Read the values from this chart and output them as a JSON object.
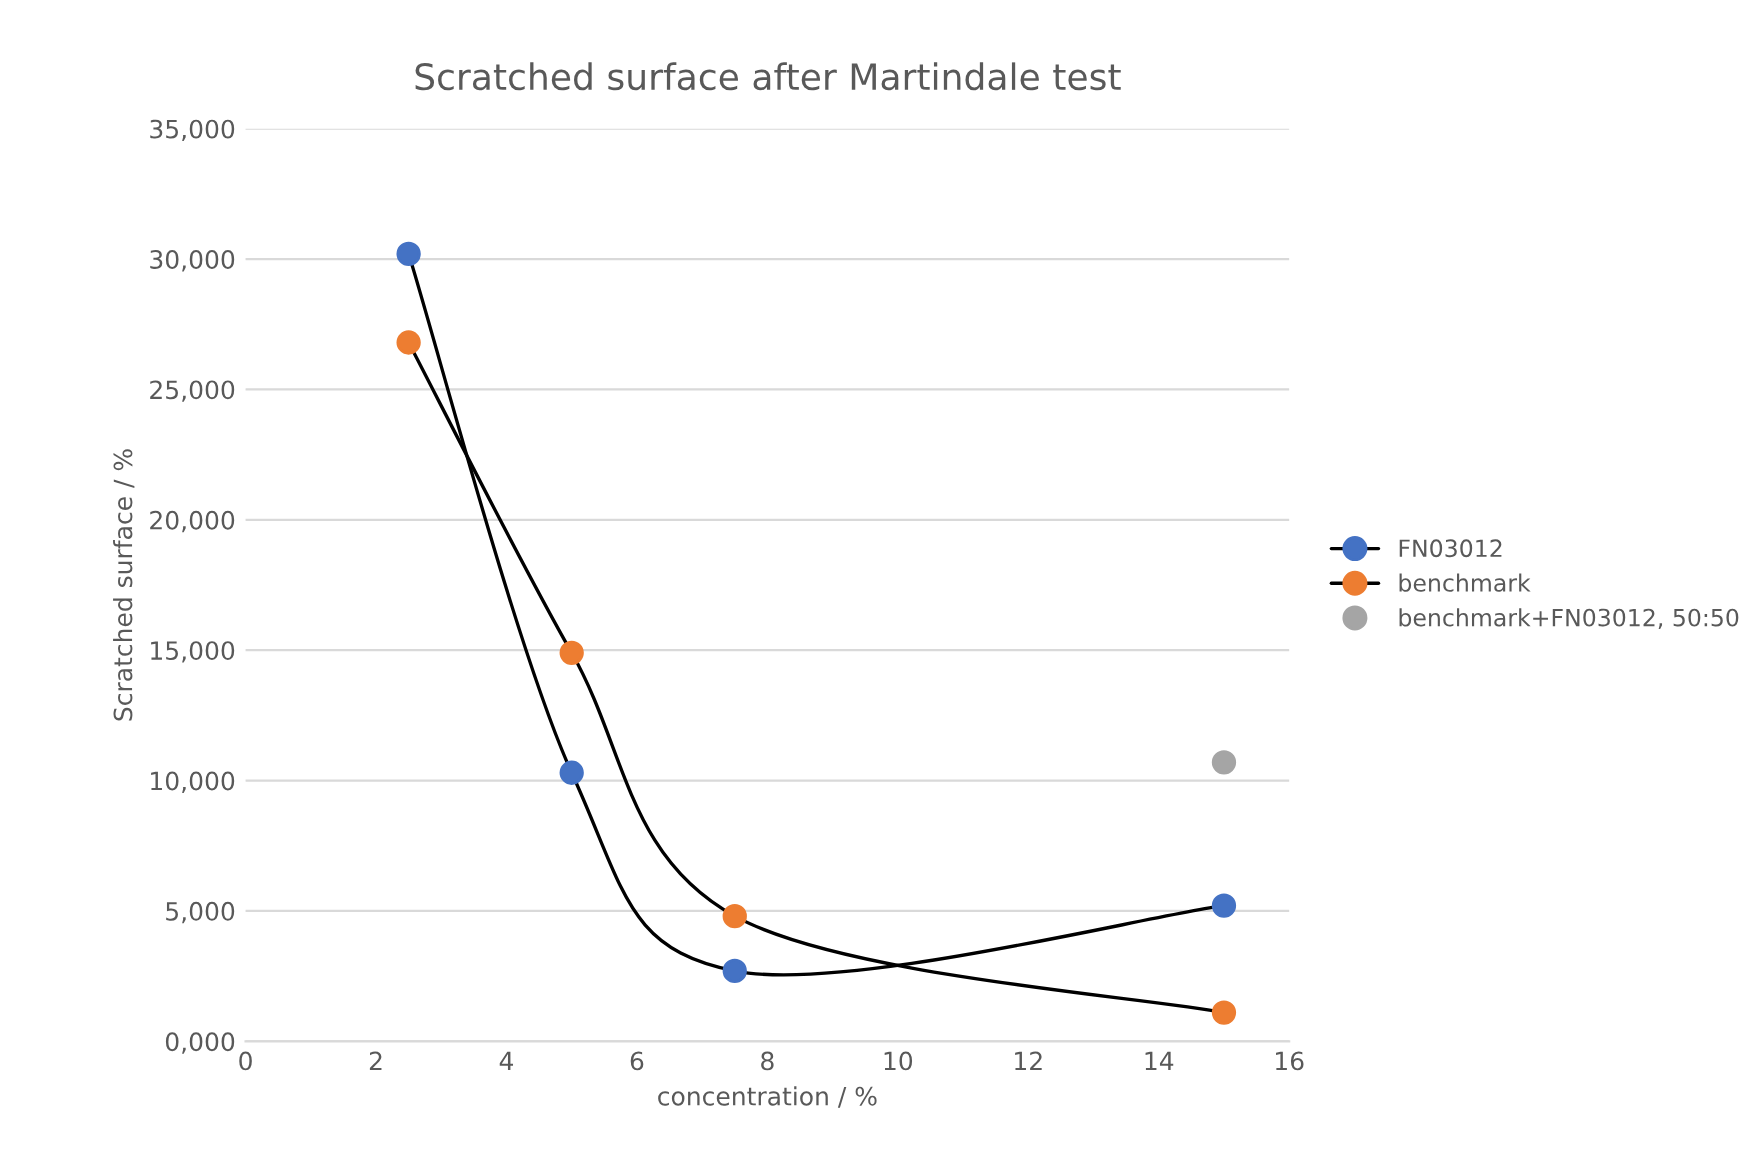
{
  "chart_data": {
    "type": "line",
    "title": "Scratched surface after Martindale test",
    "xlabel": "concentration / %",
    "ylabel": "Scratched surface / %",
    "xlim": [
      0,
      16
    ],
    "xticks": [
      0,
      2,
      4,
      6,
      8,
      10,
      12,
      14,
      16
    ],
    "ylim": [
      0,
      35000
    ],
    "yticks": [
      {
        "value": 0,
        "label": "0,000"
      },
      {
        "value": 5000,
        "label": "5,000"
      },
      {
        "value": 10000,
        "label": "10,000"
      },
      {
        "value": 15000,
        "label": "15,000"
      },
      {
        "value": 20000,
        "label": "20,000"
      },
      {
        "value": 25000,
        "label": "25,000"
      },
      {
        "value": 30000,
        "label": "30,000"
      },
      {
        "value": 35000,
        "label": "35,000"
      }
    ],
    "grid": "y",
    "legend": "right",
    "marker": "circle",
    "series": [
      {
        "name": "FN03012",
        "color": "#000000",
        "colors": [
          "#4472c4",
          "#4472c4",
          "#4472c4",
          "#4472c4"
        ],
        "x": [
          2.5,
          5,
          7.5,
          15
        ],
        "values": [
          30200,
          10300,
          2700,
          5200
        ]
      },
      {
        "name": "benchmark",
        "color": "#000000",
        "colors": [
          "#ed7d31",
          "#ed7d31",
          "#ed7d31",
          "#ed7d31"
        ],
        "x": [
          2.5,
          5,
          7.5,
          15
        ],
        "values": [
          26800,
          14900,
          4800,
          1100
        ]
      },
      {
        "name": "benchmark+FN03012, 50:50",
        "type": "scatter",
        "color": "#a5a5a5",
        "x": [
          15
        ],
        "values": [
          10700
        ]
      }
    ]
  }
}
